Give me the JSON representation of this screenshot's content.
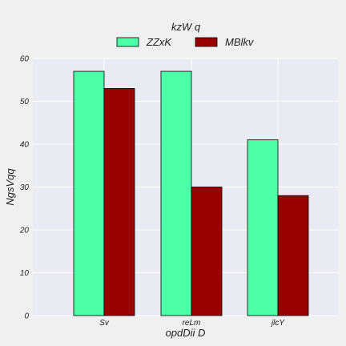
{
  "chart_data": {
    "type": "bar",
    "title": "",
    "legend_title": "kzW q",
    "legend_placement": "top-center",
    "xlabel": "opdDii D",
    "ylabel": "NgsVqq",
    "categories": [
      "Sv",
      "reLm",
      "jlcY"
    ],
    "series": [
      {
        "name": "ZZxK",
        "values": [
          57,
          57,
          41
        ],
        "color": "#4dffa6"
      },
      {
        "name": "MBlkv",
        "values": [
          53,
          30,
          28
        ],
        "color": "#990000"
      }
    ],
    "ylim": [
      0,
      60
    ],
    "yticks": [
      0,
      10,
      20,
      30,
      40,
      50,
      60
    ],
    "grid": true,
    "plot_background": "#eaeaf2",
    "figure_background": "#f0f0f0"
  }
}
